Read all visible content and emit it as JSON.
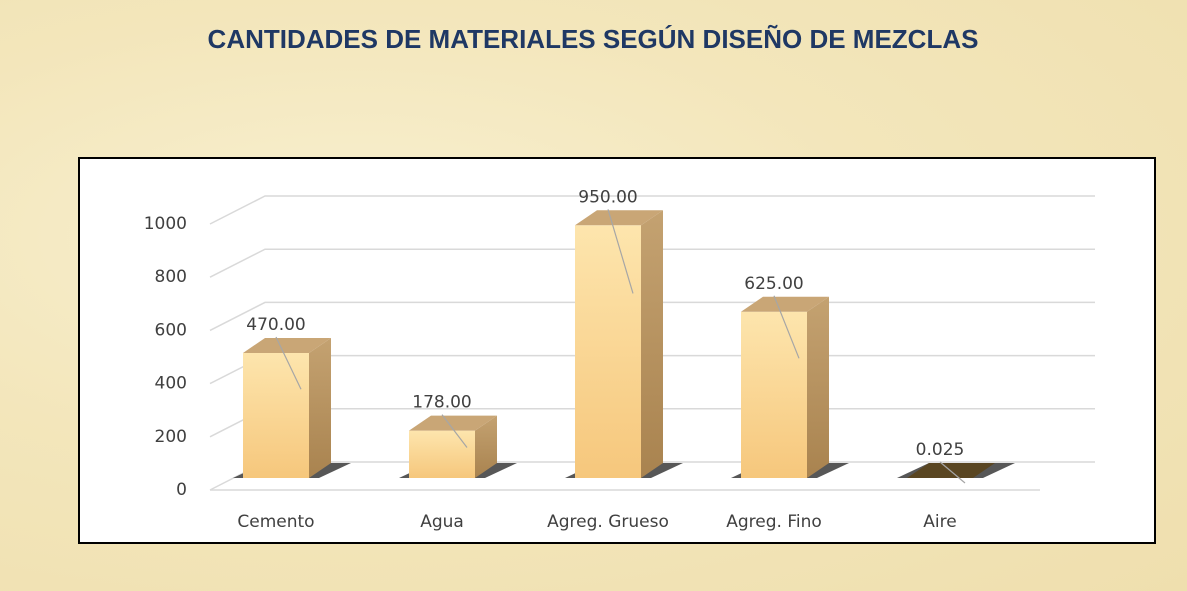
{
  "chart_data": {
    "type": "bar3d",
    "title": "CANTIDADES DE MATERIALES SEGÚN DISEÑO DE MEZCLAS",
    "categories": [
      "Cemento",
      "Agua",
      "Agreg. Grueso",
      "Agreg. Fino",
      "Aire"
    ],
    "values": [
      470,
      178,
      950,
      625,
      0.025
    ],
    "value_labels": [
      "470.00",
      "178.00",
      "950.00",
      "625.00",
      "0.025"
    ],
    "color": "#f9d593",
    "ylim": [
      0,
      1000
    ],
    "yticks": [
      0,
      200,
      400,
      600,
      800,
      1000
    ],
    "grid": true
  }
}
